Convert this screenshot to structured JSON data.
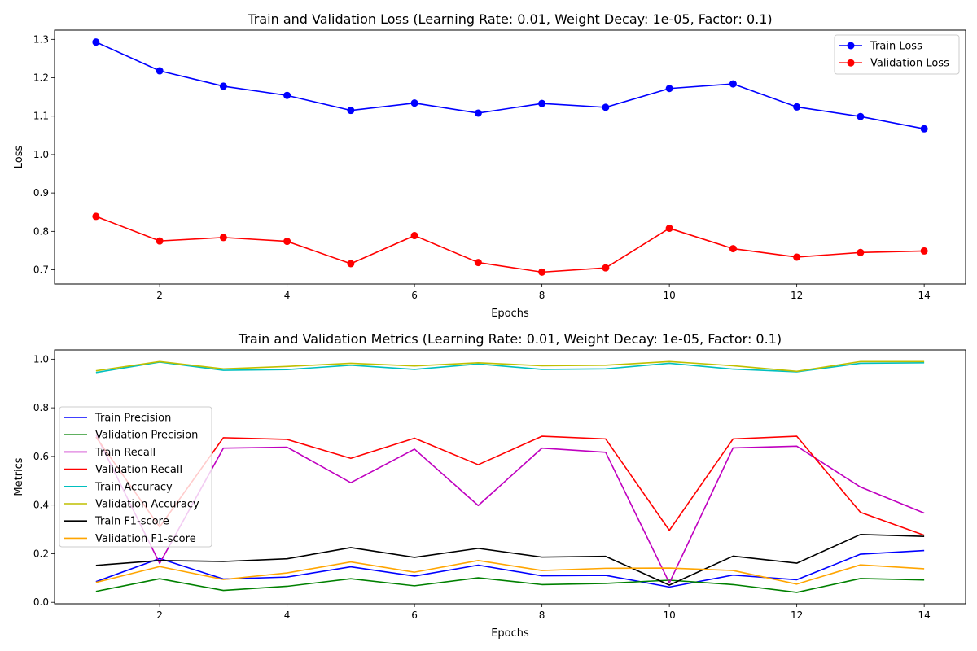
{
  "chart_data": [
    {
      "type": "line",
      "title": "Train and Validation Loss (Learning Rate: 0.01, Weight Decay: 1e-05, Factor: 0.1)",
      "xlabel": "Epochs",
      "ylabel": "Loss",
      "xlim": [
        0.35,
        14.65
      ],
      "ylim": [
        0.663,
        1.324
      ],
      "xticks": [
        2,
        4,
        6,
        8,
        10,
        12,
        14
      ],
      "yticks": [
        0.7,
        0.8,
        0.9,
        1.0,
        1.1,
        1.2,
        1.3
      ],
      "ytick_labels": [
        "0.7",
        "0.8",
        "0.9",
        "1.0",
        "1.1",
        "1.2",
        "1.3"
      ],
      "legend_position": "top-right",
      "markers": true,
      "x": [
        1,
        2,
        3,
        4,
        5,
        6,
        7,
        8,
        9,
        10,
        11,
        12,
        13,
        14
      ],
      "series": [
        {
          "name": "Train Loss",
          "color": "#0000ff",
          "values": [
            1.293,
            1.218,
            1.178,
            1.154,
            1.115,
            1.134,
            1.108,
            1.133,
            1.123,
            1.172,
            1.184,
            1.124,
            1.099,
            1.067
          ]
        },
        {
          "name": "Validation Loss",
          "color": "#ff0000",
          "values": [
            0.839,
            0.775,
            0.784,
            0.774,
            0.716,
            0.789,
            0.719,
            0.694,
            0.705,
            0.808,
            0.755,
            0.733,
            0.745,
            0.749
          ]
        }
      ]
    },
    {
      "type": "line",
      "title": "Train and Validation Metrics (Learning Rate: 0.01, Weight Decay: 1e-05, Factor: 0.1)",
      "xlabel": "Epochs",
      "ylabel": "Metrics",
      "xlim": [
        0.35,
        14.65
      ],
      "ylim": [
        -0.006,
        1.038
      ],
      "xticks": [
        2,
        4,
        6,
        8,
        10,
        12,
        14
      ],
      "yticks": [
        0.0,
        0.2,
        0.4,
        0.6,
        0.8,
        1.0
      ],
      "ytick_labels": [
        "0.0",
        "0.2",
        "0.4",
        "0.6",
        "0.8",
        "1.0"
      ],
      "legend_position": "center-left",
      "markers": false,
      "x": [
        1,
        2,
        3,
        4,
        5,
        6,
        7,
        8,
        9,
        10,
        11,
        12,
        13,
        14
      ],
      "series": [
        {
          "name": "Train Precision",
          "color": "#0000ff",
          "values": [
            0.085,
            0.18,
            0.096,
            0.104,
            0.146,
            0.108,
            0.153,
            0.109,
            0.111,
            0.063,
            0.112,
            0.093,
            0.198,
            0.213
          ]
        },
        {
          "name": "Validation Precision",
          "color": "#008000",
          "values": [
            0.045,
            0.097,
            0.049,
            0.066,
            0.097,
            0.068,
            0.101,
            0.073,
            0.078,
            0.091,
            0.073,
            0.041,
            0.098,
            0.092
          ]
        },
        {
          "name": "Train Recall",
          "color": "#bf00bf",
          "values": [
            0.69,
            0.16,
            0.634,
            0.638,
            0.492,
            0.63,
            0.398,
            0.634,
            0.617,
            0.08,
            0.635,
            0.642,
            0.474,
            0.367
          ]
        },
        {
          "name": "Validation Recall",
          "color": "#ff0000",
          "values": [
            0.68,
            0.31,
            0.677,
            0.67,
            0.592,
            0.675,
            0.566,
            0.683,
            0.672,
            0.296,
            0.672,
            0.683,
            0.37,
            0.276
          ]
        },
        {
          "name": "Train Accuracy",
          "color": "#00bfbf",
          "values": [
            0.945,
            0.988,
            0.954,
            0.957,
            0.975,
            0.958,
            0.98,
            0.958,
            0.96,
            0.983,
            0.959,
            0.948,
            0.983,
            0.985
          ]
        },
        {
          "name": "Validation Accuracy",
          "color": "#bfbf00",
          "values": [
            0.952,
            0.99,
            0.96,
            0.97,
            0.983,
            0.972,
            0.985,
            0.973,
            0.975,
            0.99,
            0.973,
            0.95,
            0.99,
            0.99
          ]
        },
        {
          "name": "Train F1-score",
          "color": "#000000",
          "values": [
            0.152,
            0.172,
            0.168,
            0.179,
            0.225,
            0.185,
            0.222,
            0.186,
            0.189,
            0.071,
            0.19,
            0.161,
            0.279,
            0.271
          ]
        },
        {
          "name": "Validation F1-score",
          "color": "#ffa500",
          "values": [
            0.082,
            0.147,
            0.094,
            0.121,
            0.166,
            0.124,
            0.172,
            0.131,
            0.14,
            0.141,
            0.131,
            0.075,
            0.154,
            0.138
          ]
        }
      ]
    }
  ]
}
